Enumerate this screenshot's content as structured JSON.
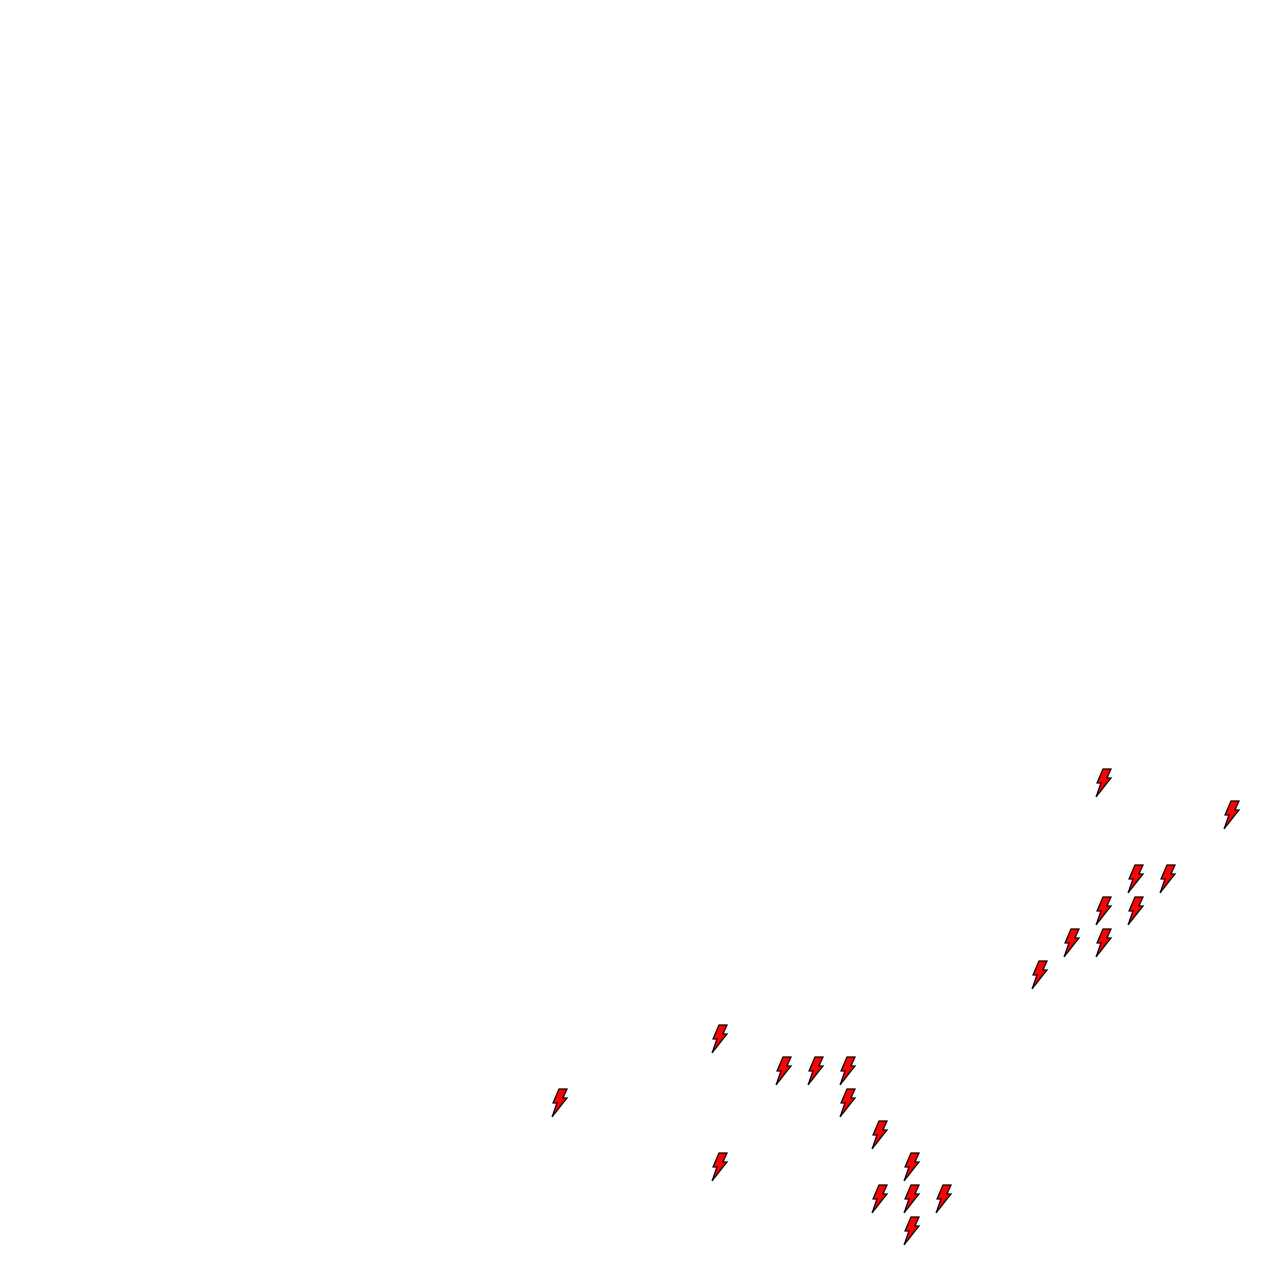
{
  "map": {
    "marker_icon": "lightning-bolt-icon",
    "marker_fill": "#ff0000",
    "marker_stroke": "#000000",
    "marker_count": 22
  }
}
